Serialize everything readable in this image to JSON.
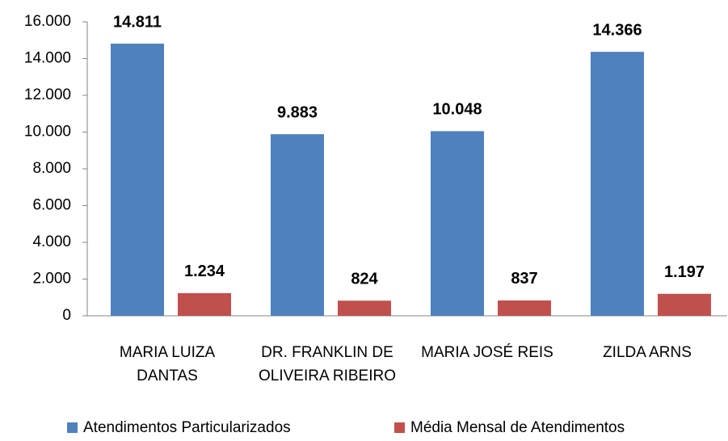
{
  "chart_data": {
    "type": "bar",
    "categories": [
      "MARIA LUIZA\nDANTAS",
      "DR. FRANKLIN DE\nOLIVEIRA RIBEIRO",
      "MARIA JOSÉ REIS",
      "ZILDA ARNS"
    ],
    "series": [
      {
        "name": "Atendimentos Particularizados",
        "color": "#4f81bd",
        "values": [
          14811,
          9883,
          10048,
          14366
        ],
        "value_labels": [
          "14.811",
          "9.883",
          "10.048",
          "14.366"
        ]
      },
      {
        "name": "Média Mensal de Atendimentos",
        "color": "#c0504d",
        "values": [
          1234,
          824,
          837,
          1197
        ],
        "value_labels": [
          "1.234",
          "824",
          "837",
          "1.197"
        ]
      }
    ],
    "ylim": [
      0,
      16000
    ],
    "yticks": [
      0,
      {
        "value": 2000,
        "label": "2.000"
      },
      {
        "value": 4000,
        "label": "4.000"
      },
      {
        "value": 6000,
        "label": "6.000"
      },
      {
        "value": 8000,
        "label": "8.000"
      },
      {
        "value": 10000,
        "label": "10.000"
      },
      {
        "value": 12000,
        "label": "12.000"
      },
      {
        "value": 14000,
        "label": "14.000"
      },
      {
        "value": 16000,
        "label": "16.000"
      }
    ],
    "grid": false,
    "legend": "bottom"
  }
}
